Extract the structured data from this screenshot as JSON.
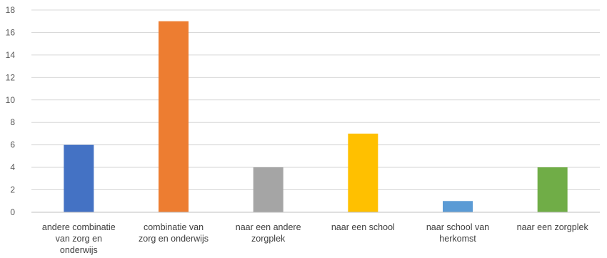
{
  "chart_data": {
    "type": "bar",
    "categories": [
      [
        "andere combinatie",
        "van zorg en",
        "onderwijs"
      ],
      [
        "combinatie van",
        "zorg en onderwijs"
      ],
      [
        "naar een andere",
        "zorgplek"
      ],
      [
        "naar een school"
      ],
      [
        "naar school van",
        "herkomst"
      ],
      [
        "naar een zorgplek"
      ]
    ],
    "values": [
      6,
      17,
      4,
      7,
      1,
      4
    ],
    "colors": [
      "#4472c4",
      "#ed7d31",
      "#a5a5a5",
      "#ffc000",
      "#5b9bd5",
      "#70ad47"
    ],
    "ylim": [
      0,
      18
    ],
    "yticks": [
      "0",
      "2",
      "4",
      "6",
      "8",
      "10",
      "12",
      "14",
      "16",
      "18"
    ],
    "grid": true,
    "legend": "none"
  }
}
